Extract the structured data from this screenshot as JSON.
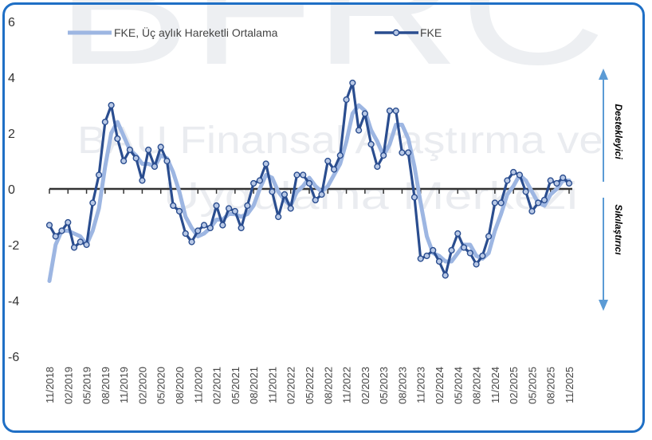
{
  "watermark": {
    "logo_text": "BFRC",
    "line1": "BAU Finansal Araştırma ve",
    "line2": "Uygulama Merkezi"
  },
  "side_labels": {
    "top": "Destekleyici",
    "bottom": "Sıkılaştırıcı"
  },
  "colors": {
    "fke": "#2a4d8f",
    "ma": "#9db6e2",
    "axis_arrow": "#5b9bd5",
    "frame": "#1f6fc5"
  },
  "chart_data": {
    "type": "line",
    "ylim": [
      -6,
      6
    ],
    "yticks": [
      "6",
      "4",
      "2",
      "0",
      "-2",
      "-4",
      "-6"
    ],
    "x_tick_labels": [
      "11/2018",
      "02/2019",
      "05/2019",
      "08/2019",
      "11/2019",
      "02/2020",
      "05/2020",
      "08/2020",
      "11/2020",
      "02/2021",
      "05/2021",
      "08/2021",
      "11/2021",
      "02/2022",
      "05/2022",
      "08/2022",
      "11/2022",
      "02/2023",
      "05/2023",
      "08/2023",
      "11/2023",
      "02/2024",
      "05/2024",
      "08/2024",
      "11/2024",
      "02/2025",
      "05/2025",
      "08/2025",
      "11/2025"
    ],
    "series": [
      {
        "name": "FKE",
        "values": [
          -1.3,
          -1.7,
          -1.5,
          -1.2,
          -2.1,
          -1.9,
          -2.0,
          -0.5,
          0.5,
          2.4,
          3.0,
          1.8,
          1.0,
          1.4,
          1.1,
          0.3,
          1.4,
          0.8,
          1.5,
          1.0,
          -0.6,
          -0.8,
          -1.6,
          -1.9,
          -1.5,
          -1.3,
          -1.4,
          -0.6,
          -1.3,
          -0.7,
          -0.8,
          -1.4,
          -0.6,
          0.2,
          0.3,
          0.9,
          -0.1,
          -1.0,
          -0.2,
          -0.7,
          0.5,
          0.5,
          0.2,
          -0.4,
          -0.2,
          1.0,
          0.7,
          1.2,
          3.2,
          3.8,
          2.1,
          2.7,
          1.6,
          0.8,
          1.2,
          2.8,
          2.8,
          1.3,
          1.3,
          -0.3,
          -2.5,
          -2.4,
          -2.2,
          -2.6,
          -3.1,
          -2.2,
          -1.6,
          -2.1,
          -2.3,
          -2.7,
          -2.4,
          -1.7,
          -0.5,
          -0.5,
          0.3,
          0.6,
          0.5,
          -0.1,
          -0.8,
          -0.5,
          -0.4,
          0.3,
          0.2,
          0.4,
          0.2
        ]
      },
      {
        "name": "FKE, Üç aylık Hareketli Ortalama",
        "values": [
          -3.3,
          -2.0,
          -1.5,
          -1.5,
          -1.6,
          -1.7,
          -2.0,
          -1.5,
          -0.7,
          0.8,
          2.0,
          2.4,
          1.9,
          1.4,
          1.2,
          0.9,
          0.9,
          0.8,
          1.2,
          1.1,
          0.6,
          -0.1,
          -1.0,
          -1.4,
          -1.7,
          -1.6,
          -1.4,
          -1.1,
          -1.1,
          -0.9,
          -0.9,
          -1.0,
          -0.9,
          -0.6,
          0.0,
          0.5,
          0.4,
          -0.1,
          -0.4,
          -0.6,
          -0.1,
          0.1,
          0.4,
          0.1,
          -0.1,
          0.1,
          0.5,
          0.9,
          1.7,
          2.7,
          3.0,
          2.8,
          2.1,
          1.7,
          1.2,
          1.6,
          2.3,
          2.3,
          1.8,
          0.8,
          -0.5,
          -1.7,
          -2.3,
          -2.4,
          -2.6,
          -2.6,
          -2.3,
          -2.0,
          -2.0,
          -2.4,
          -2.5,
          -2.3,
          -1.5,
          -0.9,
          -0.2,
          0.1,
          0.5,
          0.3,
          -0.1,
          -0.5,
          -0.6,
          -0.2,
          0.0,
          0.3,
          0.3
        ]
      }
    ],
    "legend_position": "top"
  }
}
